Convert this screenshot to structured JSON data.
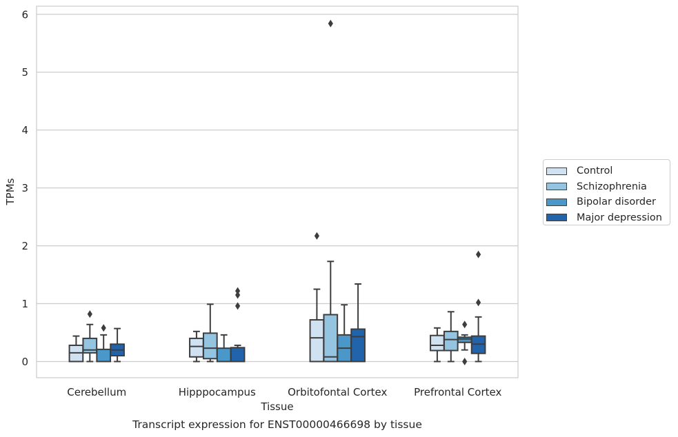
{
  "chart_data": {
    "type": "box",
    "caption": "Transcript expression for ENST00000466698 by tissue",
    "xlabel": "Tissue",
    "ylabel": "TPMs",
    "ylim": [
      -0.28,
      6.14
    ],
    "yticks": [
      0,
      1,
      2,
      3,
      4,
      5,
      6
    ],
    "grid": true,
    "legend_position": "right",
    "categories": [
      "Cerebellum",
      "Hipppocampus",
      "Orbitofontal Cortex",
      "Prefrontal Cortex"
    ],
    "series": [
      {
        "name": "Control",
        "color": "#d0e1f2",
        "boxes": [
          {
            "min": 0.0,
            "q1": 0.0,
            "median": 0.15,
            "q3": 0.28,
            "max": 0.44,
            "outliers": []
          },
          {
            "min": 0.0,
            "q1": 0.08,
            "median": 0.26,
            "q3": 0.4,
            "max": 0.52,
            "outliers": []
          },
          {
            "min": 0.0,
            "q1": 0.0,
            "median": 0.41,
            "q3": 0.72,
            "max": 1.25,
            "outliers": [
              2.17
            ]
          },
          {
            "min": 0.0,
            "q1": 0.19,
            "median": 0.28,
            "q3": 0.45,
            "max": 0.58,
            "outliers": []
          }
        ]
      },
      {
        "name": "Schizophrenia",
        "color": "#94c4df",
        "boxes": [
          {
            "min": 0.0,
            "q1": 0.15,
            "median": 0.2,
            "q3": 0.4,
            "max": 0.64,
            "outliers": [
              0.82
            ]
          },
          {
            "min": 0.0,
            "q1": 0.05,
            "median": 0.23,
            "q3": 0.49,
            "max": 0.99,
            "outliers": []
          },
          {
            "min": 0.0,
            "q1": 0.0,
            "median": 0.08,
            "q3": 0.81,
            "max": 1.73,
            "outliers": [
              5.84
            ]
          },
          {
            "min": 0.0,
            "q1": 0.19,
            "median": 0.38,
            "q3": 0.52,
            "max": 0.86,
            "outliers": []
          }
        ]
      },
      {
        "name": "Bipolar disorder",
        "color": "#4a98c9",
        "boxes": [
          {
            "min": 0.0,
            "q1": 0.0,
            "median": 0.0,
            "q3": 0.21,
            "max": 0.46,
            "outliers": [
              0.58
            ]
          },
          {
            "min": 0.0,
            "q1": 0.0,
            "median": 0.0,
            "q3": 0.23,
            "max": 0.46,
            "outliers": []
          },
          {
            "min": 0.0,
            "q1": 0.0,
            "median": 0.23,
            "q3": 0.46,
            "max": 0.98,
            "outliers": []
          },
          {
            "min": 0.2,
            "q1": 0.33,
            "median": 0.39,
            "q3": 0.42,
            "max": 0.46,
            "outliers": [
              0.64,
              0.0
            ]
          }
        ]
      },
      {
        "name": "Major depression",
        "color": "#2164ab",
        "boxes": [
          {
            "min": 0.0,
            "q1": 0.1,
            "median": 0.2,
            "q3": 0.3,
            "max": 0.57,
            "outliers": []
          },
          {
            "min": 0.0,
            "q1": 0.0,
            "median": 0.0,
            "q3": 0.24,
            "max": 0.28,
            "outliers": [
              0.96,
              1.15,
              1.22
            ]
          },
          {
            "min": 0.0,
            "q1": 0.0,
            "median": 0.43,
            "q3": 0.56,
            "max": 1.34,
            "outliers": []
          },
          {
            "min": 0.0,
            "q1": 0.14,
            "median": 0.3,
            "q3": 0.44,
            "max": 0.77,
            "outliers": [
              1.02,
              1.85
            ]
          }
        ]
      }
    ]
  }
}
